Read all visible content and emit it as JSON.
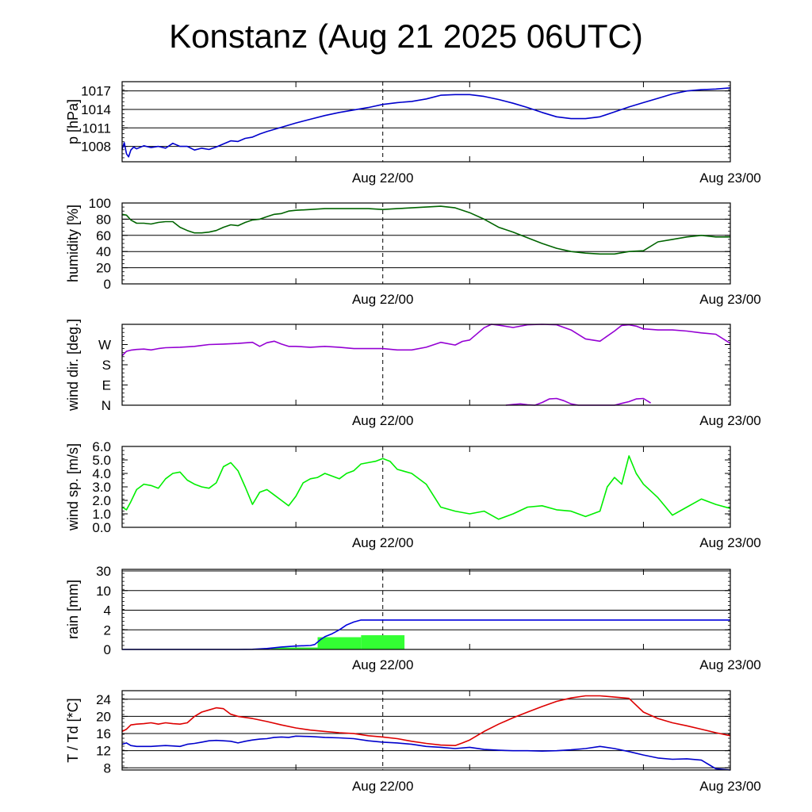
{
  "title": "Konstanz (Aug 21 2025 06UTC)",
  "colors": {
    "pressure": "#0000cc",
    "humidity": "#006400",
    "wind_dir": "#9400d3",
    "wind_speed": "#00ee00",
    "rain_accum": "#0000dd",
    "rain_bars": "#33ff33",
    "temperature": "#dd0000",
    "dewpoint": "#0000cc"
  },
  "chart_data": [
    {
      "type": "line",
      "ylabel": "p [hPa]",
      "x_unit": "hours since Aug 21 06UTC",
      "xlim": [
        0,
        42
      ],
      "ylim": [
        1005.5,
        1018.5
      ],
      "yticks": [
        1008,
        1011,
        1014,
        1017
      ],
      "ytick_labels": [
        "1008",
        "1011",
        "1014",
        "1017"
      ],
      "xticks": [
        {
          "x": 18,
          "label": "Aug 22/00"
        },
        {
          "x": 42,
          "label": "Aug 23/00"
        }
      ],
      "grid": true,
      "series": [
        {
          "color": "pressure",
          "x": [
            0,
            0.15,
            0.3,
            0.45,
            0.6,
            0.8,
            1,
            1.5,
            2,
            2.5,
            3,
            3.5,
            4,
            4.5,
            5,
            5.5,
            6,
            6.5,
            7,
            7.5,
            8,
            8.5,
            9,
            9.5,
            10,
            11,
            12,
            13,
            14,
            15,
            16,
            17,
            18,
            19,
            20,
            21,
            22,
            23,
            24,
            25,
            26,
            27,
            28,
            29,
            30,
            31,
            32,
            33,
            34,
            35,
            36,
            37,
            38,
            39,
            40,
            41,
            42
          ],
          "y": [
            1007.5,
            1008.6,
            1006.8,
            1006.3,
            1007.4,
            1007.9,
            1007.6,
            1008.1,
            1007.8,
            1008.0,
            1007.7,
            1008.5,
            1008.0,
            1008.0,
            1007.4,
            1007.7,
            1007.5,
            1007.9,
            1008.4,
            1008.9,
            1008.8,
            1009.3,
            1009.5,
            1010.0,
            1010.4,
            1011.1,
            1011.8,
            1012.4,
            1013.0,
            1013.5,
            1013.9,
            1014.3,
            1014.8,
            1015.1,
            1015.3,
            1015.7,
            1016.3,
            1016.4,
            1016.4,
            1016.1,
            1015.6,
            1015.0,
            1014.3,
            1013.5,
            1012.8,
            1012.5,
            1012.5,
            1012.8,
            1013.6,
            1014.4,
            1015.1,
            1015.8,
            1016.5,
            1017.0,
            1017.2,
            1017.3,
            1017.5
          ]
        }
      ]
    },
    {
      "type": "line",
      "ylabel": "humidity [%]",
      "x_unit": "hours since Aug 21 06UTC",
      "xlim": [
        0,
        42
      ],
      "ylim": [
        0,
        100
      ],
      "yticks": [
        0,
        20,
        40,
        60,
        80,
        100
      ],
      "ytick_labels": [
        "0",
        "20",
        "40",
        "60",
        "80",
        "100"
      ],
      "xticks": [
        {
          "x": 18,
          "label": "Aug 22/00"
        },
        {
          "x": 42,
          "label": "Aug 23/00"
        }
      ],
      "grid": true,
      "series": [
        {
          "color": "humidity",
          "x": [
            0,
            0.3,
            0.6,
            1,
            1.5,
            2,
            2.5,
            3,
            3.5,
            4,
            4.5,
            5,
            5.5,
            6,
            6.5,
            7,
            7.5,
            8,
            8.5,
            9,
            9.5,
            10,
            10.5,
            11,
            11.5,
            12,
            13,
            14,
            15,
            16,
            17,
            18,
            19,
            20,
            21,
            22,
            23,
            24,
            25,
            26,
            27,
            28,
            29,
            30,
            31,
            32,
            33,
            34,
            35,
            36,
            37,
            38,
            39,
            40,
            41,
            42
          ],
          "y": [
            86,
            85,
            79,
            75,
            75,
            74,
            76,
            77,
            77,
            70,
            66,
            63,
            63,
            64,
            66,
            70,
            73,
            72,
            76,
            79,
            80,
            83,
            86,
            87,
            90,
            91,
            92,
            93,
            93,
            93,
            93,
            92,
            93,
            94,
            95,
            96,
            94,
            88,
            80,
            70,
            64,
            57,
            50,
            44,
            40,
            38,
            37,
            37,
            40,
            41,
            52,
            55,
            58,
            60,
            58,
            58
          ]
        }
      ]
    },
    {
      "type": "line",
      "ylabel": "wind dir. [deg.]",
      "x_unit": "hours since Aug 21 06UTC",
      "xlim": [
        0,
        42
      ],
      "ylim": [
        0,
        360
      ],
      "yticks": [
        0,
        90,
        180,
        270
      ],
      "ytick_labels": [
        "N",
        "E",
        "S",
        "W"
      ],
      "xticks": [
        {
          "x": 18,
          "label": "Aug 22/00"
        },
        {
          "x": 42,
          "label": "Aug 23/00"
        }
      ],
      "grid": false,
      "series": [
        {
          "color": "wind_dir",
          "x": [
            0,
            0.3,
            0.6,
            1,
            1.5,
            2,
            2.5,
            3,
            4,
            5,
            6,
            7,
            8,
            9,
            9.5,
            10,
            10.5,
            11,
            11.5,
            12,
            13,
            14,
            15,
            16,
            17,
            18,
            19,
            20,
            21,
            22,
            23,
            23.5,
            24,
            25,
            25.5,
            26,
            27,
            28,
            29,
            30,
            31,
            32,
            33,
            34,
            34.5,
            35,
            35.5,
            36,
            37,
            38,
            39,
            40,
            41,
            42
          ],
          "y": [
            220,
            240,
            245,
            248,
            250,
            246,
            252,
            256,
            258,
            262,
            270,
            272,
            275,
            280,
            262,
            278,
            285,
            272,
            262,
            262,
            258,
            262,
            258,
            252,
            252,
            252,
            246,
            246,
            258,
            280,
            268,
            284,
            290,
            345,
            360,
            356,
            346,
            358,
            360,
            358,
            335,
            295,
            285,
            330,
            355,
            358,
            352,
            340,
            335,
            335,
            330,
            322,
            316,
            275
          ]
        },
        {
          "color": "wind_dir",
          "x": [
            26.5,
            27,
            27.5,
            28,
            28.5,
            29,
            29.5,
            30,
            30.5,
            31,
            31.5,
            32,
            32.5,
            33,
            33.5,
            34,
            34.5,
            35,
            35.5,
            36,
            36.5
          ],
          "y": [
            0,
            3,
            6,
            2,
            0,
            12,
            28,
            30,
            20,
            6,
            0,
            0,
            0,
            0,
            0,
            0,
            8,
            16,
            28,
            30,
            10
          ]
        }
      ]
    },
    {
      "type": "line",
      "ylabel": "wind sp. [m/s]",
      "x_unit": "hours since Aug 21 06UTC",
      "xlim": [
        0,
        42
      ],
      "ylim": [
        0,
        6
      ],
      "yticks": [
        0,
        1,
        2,
        3,
        4,
        5,
        6
      ],
      "ytick_labels": [
        "0.0",
        "1.0",
        "2.0",
        "3.0",
        "4.0",
        "5.0",
        "6.0"
      ],
      "xticks": [
        {
          "x": 18,
          "label": "Aug 22/00"
        },
        {
          "x": 42,
          "label": "Aug 23/00"
        }
      ],
      "grid": false,
      "series": [
        {
          "color": "wind_speed",
          "x": [
            0,
            0.3,
            0.6,
            1,
            1.5,
            2,
            2.5,
            3,
            3.5,
            4,
            4.5,
            5,
            5.5,
            6,
            6.5,
            7,
            7.5,
            8,
            8.5,
            9,
            9.5,
            10,
            10.5,
            11,
            11.5,
            12,
            12.5,
            13,
            13.5,
            14,
            14.5,
            15,
            15.5,
            16,
            16.5,
            17,
            17.5,
            18,
            18.5,
            19,
            20,
            21,
            22,
            23,
            24,
            25,
            26,
            27,
            28,
            29,
            30,
            31,
            32,
            33,
            33.5,
            34,
            34.5,
            35,
            35.5,
            36,
            37,
            38,
            39,
            40,
            41,
            42
          ],
          "y": [
            1.5,
            1.3,
            1.9,
            2.8,
            3.2,
            3.1,
            2.9,
            3.6,
            4.0,
            4.1,
            3.5,
            3.2,
            3.0,
            2.9,
            3.3,
            4.5,
            4.8,
            4.2,
            3.0,
            1.7,
            2.6,
            2.8,
            2.4,
            2.0,
            1.6,
            2.3,
            3.3,
            3.6,
            3.7,
            4.0,
            3.8,
            3.6,
            4.0,
            4.2,
            4.7,
            4.8,
            4.9,
            5.1,
            4.9,
            4.3,
            4.0,
            3.2,
            1.5,
            1.2,
            1.0,
            1.2,
            0.6,
            1.0,
            1.5,
            1.6,
            1.3,
            1.2,
            0.8,
            1.2,
            3.0,
            3.7,
            3.2,
            5.3,
            4.0,
            3.2,
            2.2,
            0.9,
            1.5,
            2.1,
            1.7,
            1.4
          ]
        }
      ]
    },
    {
      "type": "line",
      "ylabel": "rain [mm]",
      "x_unit": "hours since Aug 21 06UTC",
      "xlim": [
        0,
        42
      ],
      "ylim": [
        0,
        30
      ],
      "scale": "piecewise: 0,2,4 linear then 10,30",
      "yticks": [
        0,
        2,
        4,
        10,
        30
      ],
      "ytick_labels": [
        "0",
        "2",
        "4",
        "10",
        "30"
      ],
      "xticks": [
        {
          "x": 18,
          "label": "Aug 22/00"
        },
        {
          "x": 42,
          "label": "Aug 23/00"
        }
      ],
      "grid": true,
      "bars": {
        "color": "rain_bars",
        "segments": [
          {
            "x0": 9.0,
            "x1": 10.3,
            "value": 0.05
          },
          {
            "x0": 10.3,
            "x1": 13.5,
            "value": 0.2
          },
          {
            "x0": 13.5,
            "x1": 16.5,
            "value": 1.25
          },
          {
            "x0": 16.5,
            "x1": 19.5,
            "value": 1.45
          }
        ]
      },
      "series": [
        {
          "color": "rain_accum",
          "x": [
            0,
            8,
            9,
            10,
            11,
            12,
            13,
            13.3,
            13.7,
            14,
            14.5,
            15,
            15.5,
            16,
            16.5,
            42
          ],
          "y": [
            0,
            0,
            0.02,
            0.1,
            0.25,
            0.35,
            0.4,
            0.5,
            1.0,
            1.3,
            1.6,
            2.0,
            2.5,
            2.8,
            3.0,
            3.0
          ]
        }
      ]
    },
    {
      "type": "line",
      "ylabel": "T / Td [*C]",
      "x_unit": "hours since Aug 21 06UTC",
      "xlim": [
        0,
        42
      ],
      "ylim": [
        7.5,
        26
      ],
      "yticks": [
        8,
        12,
        16,
        20,
        24
      ],
      "ytick_labels": [
        "8",
        "12",
        "16",
        "20",
        "24"
      ],
      "xticks": [
        {
          "x": 18,
          "label": "Aug 22/00"
        },
        {
          "x": 42,
          "label": "Aug 23/00"
        }
      ],
      "grid": true,
      "series": [
        {
          "color": "temperature",
          "x": [
            0,
            0.3,
            0.6,
            1,
            1.5,
            2,
            2.5,
            3,
            3.5,
            4,
            4.5,
            5,
            5.5,
            6,
            6.5,
            7,
            7.5,
            8,
            9,
            10,
            11,
            12,
            13,
            14,
            15,
            16,
            17,
            18,
            19,
            20,
            21,
            22,
            23,
            23.5,
            24,
            25,
            26,
            27,
            28,
            29,
            30,
            31,
            32,
            33,
            34,
            35,
            36,
            37,
            38,
            39,
            40,
            41,
            42
          ],
          "y": [
            16.5,
            17.0,
            18.0,
            18.2,
            18.3,
            18.5,
            18.2,
            18.5,
            18.3,
            18.2,
            18.5,
            20.0,
            21.0,
            21.5,
            22.0,
            21.8,
            20.5,
            20.0,
            19.5,
            18.8,
            18.0,
            17.3,
            16.8,
            16.5,
            16.2,
            16.0,
            15.5,
            15.2,
            14.8,
            14.2,
            13.7,
            13.3,
            13.2,
            13.8,
            14.5,
            16.5,
            18.2,
            19.7,
            21.0,
            22.3,
            23.5,
            24.3,
            24.8,
            24.8,
            24.5,
            24.2,
            21.0,
            19.5,
            18.5,
            17.8,
            17.0,
            16.2,
            15.5
          ]
        },
        {
          "color": "dewpoint",
          "x": [
            0,
            0.3,
            0.6,
            1,
            1.5,
            2,
            2.5,
            3,
            3.5,
            4,
            4.5,
            5,
            5.5,
            6,
            6.5,
            7,
            7.5,
            8,
            8.5,
            9,
            9.5,
            10,
            10.5,
            11,
            11.5,
            12,
            13,
            14,
            15,
            16,
            17,
            18,
            19,
            20,
            21,
            22,
            23,
            24,
            25,
            26,
            27,
            28,
            29,
            30,
            31,
            32,
            33,
            34,
            35,
            36,
            37,
            38,
            39,
            40,
            40.5,
            41,
            42
          ],
          "y": [
            13.5,
            13.8,
            13.2,
            13.0,
            13.0,
            13.0,
            13.1,
            13.2,
            13.1,
            13.0,
            13.5,
            13.7,
            14.0,
            14.3,
            14.4,
            14.3,
            14.2,
            13.8,
            14.2,
            14.5,
            14.7,
            14.8,
            15.1,
            15.2,
            15.1,
            15.4,
            15.3,
            15.1,
            15.0,
            14.8,
            14.3,
            14.0,
            13.8,
            13.5,
            13.0,
            12.8,
            12.5,
            12.8,
            12.3,
            12.1,
            12.0,
            12.0,
            11.9,
            12.0,
            12.2,
            12.5,
            13.0,
            12.5,
            11.8,
            11.0,
            10.3,
            10.0,
            10.1,
            9.8,
            8.8,
            7.8,
            7.5
          ]
        }
      ]
    }
  ]
}
